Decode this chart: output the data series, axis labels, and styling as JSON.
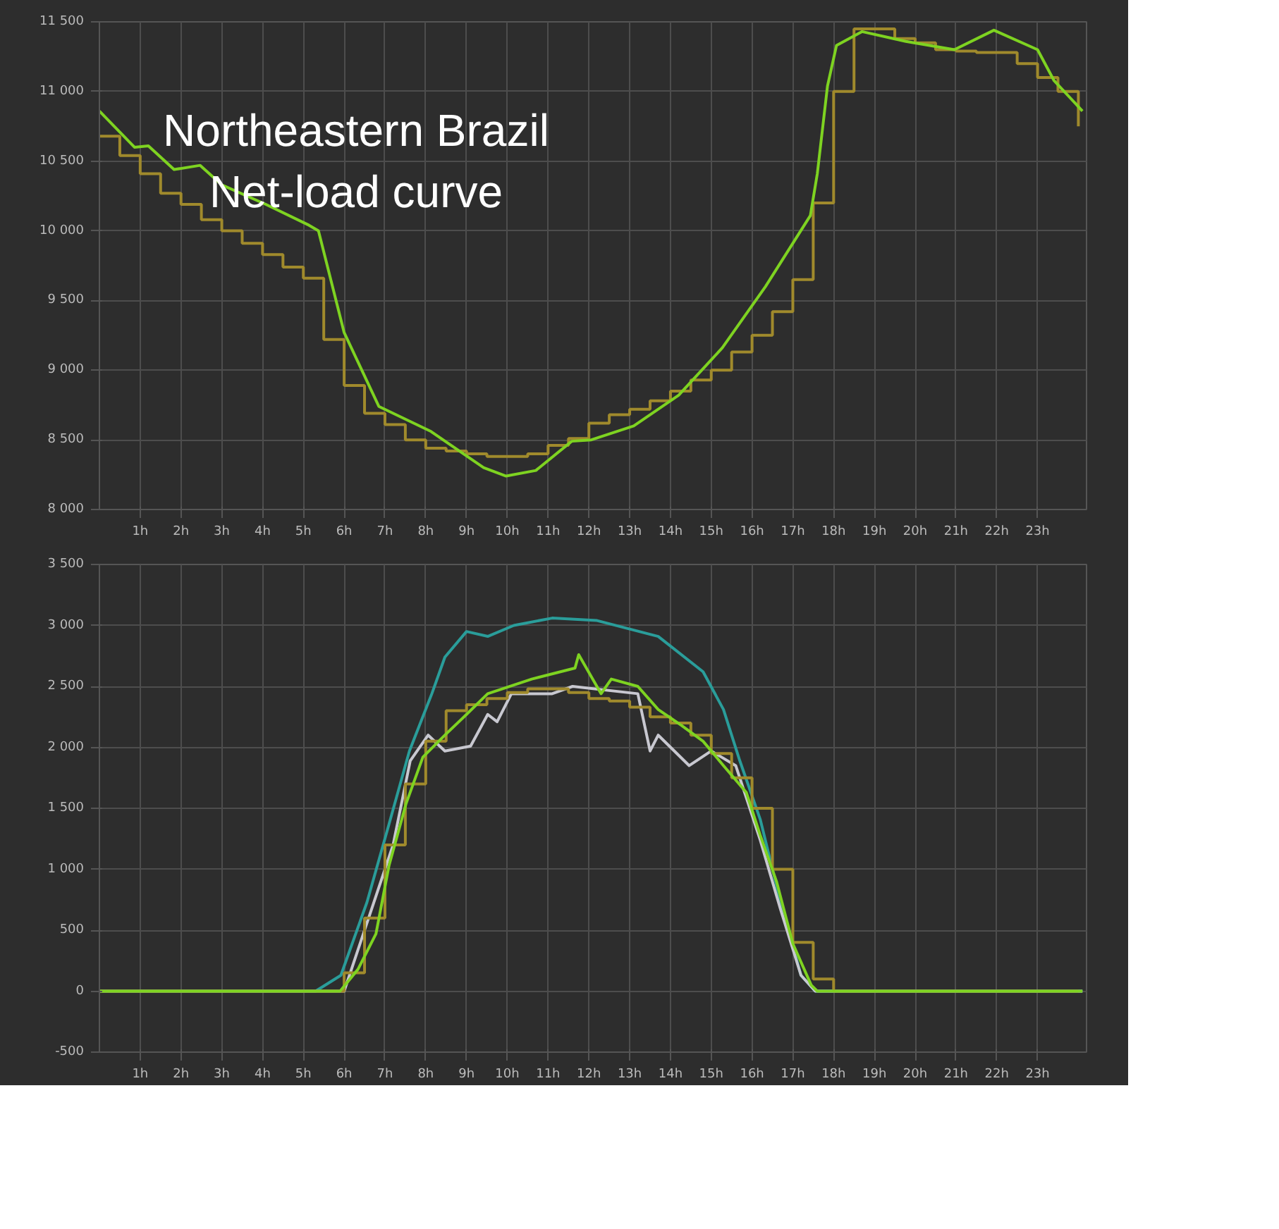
{
  "chart_data": [
    {
      "type": "line",
      "annotations": [
        "Northeastern Brazil\nNet-load curve"
      ],
      "xlim": [
        0,
        24.2
      ],
      "ylim": [
        8000,
        11500
      ],
      "xticks": [
        {
          "value": 1,
          "label": "1h"
        },
        {
          "value": 2,
          "label": "2h"
        },
        {
          "value": 3,
          "label": "3h"
        },
        {
          "value": 4,
          "label": "4h"
        },
        {
          "value": 5,
          "label": "5h"
        },
        {
          "value": 6,
          "label": "6h"
        },
        {
          "value": 7,
          "label": "7h"
        },
        {
          "value": 8,
          "label": "8h"
        },
        {
          "value": 9,
          "label": "9h"
        },
        {
          "value": 10,
          "label": "10h"
        },
        {
          "value": 11,
          "label": "11h"
        },
        {
          "value": 12,
          "label": "12h"
        },
        {
          "value": 13,
          "label": "13h"
        },
        {
          "value": 14,
          "label": "14h"
        },
        {
          "value": 15,
          "label": "15h"
        },
        {
          "value": 16,
          "label": "16h"
        },
        {
          "value": 17,
          "label": "17h"
        },
        {
          "value": 18,
          "label": "18h"
        },
        {
          "value": 19,
          "label": "19h"
        },
        {
          "value": 20,
          "label": "20h"
        },
        {
          "value": 21,
          "label": "21h"
        },
        {
          "value": 22,
          "label": "22h"
        },
        {
          "value": 23,
          "label": "23h"
        }
      ],
      "yticks": [
        {
          "value": 8000,
          "label": "8 000"
        },
        {
          "value": 8500,
          "label": "8 500"
        },
        {
          "value": 9000,
          "label": "9 000"
        },
        {
          "value": 9500,
          "label": "9 500"
        },
        {
          "value": 10000,
          "label": "10 000"
        },
        {
          "value": 10500,
          "label": "10 500"
        },
        {
          "value": 11000,
          "label": "11 000"
        },
        {
          "value": 11500,
          "label": "11 500"
        }
      ],
      "grid": true,
      "marker": "none",
      "line_style": "solid",
      "series": [
        {
          "type": "step",
          "color": "#a08a2c",
          "x": [
            0,
            0.5,
            1,
            1.5,
            2,
            2.5,
            3,
            3.5,
            4,
            4.5,
            5,
            5.5,
            6,
            6.5,
            7,
            7.5,
            8,
            8.5,
            9,
            9.5,
            10,
            10.5,
            11,
            11.5,
            12,
            12.5,
            13,
            13.5,
            14,
            14.5,
            15,
            15.5,
            16,
            16.5,
            17,
            17.5,
            18,
            18.5,
            19,
            19.5,
            20,
            20.5,
            21,
            21.5,
            22,
            22.5,
            23,
            23.5,
            24
          ],
          "values": [
            10680,
            10540,
            10410,
            10270,
            10190,
            10080,
            10000,
            9910,
            9830,
            9740,
            9660,
            9220,
            8890,
            8690,
            8610,
            8500,
            8440,
            8420,
            8400,
            8380,
            8380,
            8400,
            8460,
            8510,
            8620,
            8680,
            8720,
            8780,
            8850,
            8930,
            9000,
            9130,
            9250,
            9420,
            9650,
            10200,
            11000,
            11450,
            11450,
            11380,
            11350,
            11300,
            11290,
            11280,
            11280,
            11200,
            11100,
            11000,
            10750
          ]
        },
        {
          "color": "#7ed321",
          "x": [
            0,
            0.86,
            1.2,
            1.83,
            2.47,
            3.0,
            4.08,
            5.14,
            5.37,
            6.0,
            6.85,
            8.13,
            9.42,
            9.97,
            10.7,
            11.58,
            12.06,
            13.1,
            14.2,
            15.27,
            16.33,
            17.43,
            17.6,
            17.85,
            18.07,
            18.7,
            19.77,
            20.96,
            21.93,
            23.0,
            23.4,
            24.1
          ],
          "values": [
            10860,
            10600,
            10610,
            10440,
            10470,
            10330,
            10190,
            10040,
            10000,
            9270,
            8740,
            8560,
            8300,
            8240,
            8280,
            8490,
            8500,
            8600,
            8820,
            9160,
            9600,
            10110,
            10410,
            11040,
            11330,
            11430,
            11360,
            11300,
            11440,
            11300,
            11080,
            10860
          ]
        }
      ]
    },
    {
      "type": "line",
      "xlim": [
        0,
        24.2
      ],
      "ylim": [
        -500,
        3500
      ],
      "xticks": [
        {
          "value": 1,
          "label": "1h"
        },
        {
          "value": 2,
          "label": "2h"
        },
        {
          "value": 3,
          "label": "3h"
        },
        {
          "value": 4,
          "label": "4h"
        },
        {
          "value": 5,
          "label": "5h"
        },
        {
          "value": 6,
          "label": "6h"
        },
        {
          "value": 7,
          "label": "7h"
        },
        {
          "value": 8,
          "label": "8h"
        },
        {
          "value": 9,
          "label": "9h"
        },
        {
          "value": 10,
          "label": "10h"
        },
        {
          "value": 11,
          "label": "11h"
        },
        {
          "value": 12,
          "label": "12h"
        },
        {
          "value": 13,
          "label": "13h"
        },
        {
          "value": 14,
          "label": "14h"
        },
        {
          "value": 15,
          "label": "15h"
        },
        {
          "value": 16,
          "label": "16h"
        },
        {
          "value": 17,
          "label": "17h"
        },
        {
          "value": 18,
          "label": "18h"
        },
        {
          "value": 19,
          "label": "19h"
        },
        {
          "value": 20,
          "label": "20h"
        },
        {
          "value": 21,
          "label": "21h"
        },
        {
          "value": 22,
          "label": "22h"
        },
        {
          "value": 23,
          "label": "23h"
        }
      ],
      "yticks": [
        -500,
        0,
        500,
        {
          "value": 1000,
          "label": "1 000"
        },
        {
          "value": 1500,
          "label": "1 500"
        },
        {
          "value": 2000,
          "label": "2 000"
        },
        {
          "value": 2500,
          "label": "2 500"
        },
        {
          "value": 3000,
          "label": "3 000"
        },
        {
          "value": 3500,
          "label": "3 500"
        }
      ],
      "grid": true,
      "marker": "none",
      "line_style": "solid",
      "series": [
        {
          "color": "#2a9d9a",
          "x": [
            0,
            5.3,
            5.92,
            6.56,
            7.1,
            7.6,
            8.15,
            8.47,
            9.0,
            9.52,
            10.16,
            11.1,
            12.2,
            13.7,
            14.8,
            15.3,
            15.7,
            16.2,
            16.7,
            17.2,
            17.55,
            24.1
          ],
          "values": [
            0,
            0,
            130,
            730,
            1370,
            1970,
            2440,
            2740,
            2950,
            2910,
            3000,
            3060,
            3040,
            2910,
            2620,
            2310,
            1890,
            1410,
            730,
            130,
            0,
            0
          ]
        },
        {
          "color": "#c8c8d0",
          "x": [
            0,
            6.0,
            7.2,
            7.62,
            8.06,
            8.47,
            9.1,
            9.52,
            9.75,
            10.1,
            11.1,
            11.6,
            13.2,
            13.5,
            13.7,
            14.46,
            15.0,
            15.6,
            16.2,
            16.7,
            17.2,
            17.55,
            24.1
          ],
          "values": [
            0,
            0,
            1200,
            1890,
            2100,
            1970,
            2010,
            2270,
            2210,
            2440,
            2440,
            2500,
            2440,
            1970,
            2100,
            1850,
            1970,
            1850,
            1240,
            670,
            130,
            0,
            0
          ]
        },
        {
          "type": "step",
          "color": "#a08a2c",
          "x": [
            0,
            0.5,
            1,
            1.5,
            2,
            2.5,
            3,
            3.5,
            4,
            4.5,
            5,
            5.5,
            6,
            6.5,
            7,
            7.5,
            8,
            8.5,
            9,
            9.5,
            10,
            10.5,
            11,
            11.5,
            12,
            12.5,
            13,
            13.5,
            14,
            14.5,
            15,
            15.5,
            16,
            16.5,
            17,
            17.5,
            18,
            18.5,
            19,
            19.5,
            20,
            20.5,
            21,
            21.5,
            22,
            22.5,
            23,
            23.5,
            24
          ],
          "values": [
            0,
            0,
            0,
            0,
            0,
            0,
            0,
            0,
            0,
            0,
            0,
            0,
            150,
            600,
            1200,
            1700,
            2050,
            2300,
            2350,
            2400,
            2450,
            2480,
            2480,
            2450,
            2400,
            2380,
            2330,
            2250,
            2200,
            2100,
            1950,
            1750,
            1500,
            1000,
            400,
            100,
            0,
            0,
            0,
            0,
            0,
            0,
            0,
            0,
            0,
            0,
            0,
            0,
            0
          ]
        },
        {
          "color": "#7ed321",
          "x": [
            0,
            5.9,
            6.34,
            6.78,
            7.1,
            7.52,
            7.93,
            8.47,
            9.0,
            9.52,
            10.6,
            11.66,
            11.75,
            12.3,
            12.55,
            13.2,
            13.7,
            14.27,
            14.8,
            15.3,
            15.86,
            16.2,
            16.6,
            17.0,
            17.45,
            17.6,
            24.1
          ],
          "values": [
            0,
            0,
            180,
            470,
            1030,
            1540,
            1920,
            2100,
            2270,
            2440,
            2560,
            2650,
            2760,
            2440,
            2560,
            2500,
            2310,
            2180,
            2050,
            1850,
            1630,
            1280,
            900,
            390,
            50,
            0,
            0
          ]
        }
      ]
    }
  ]
}
